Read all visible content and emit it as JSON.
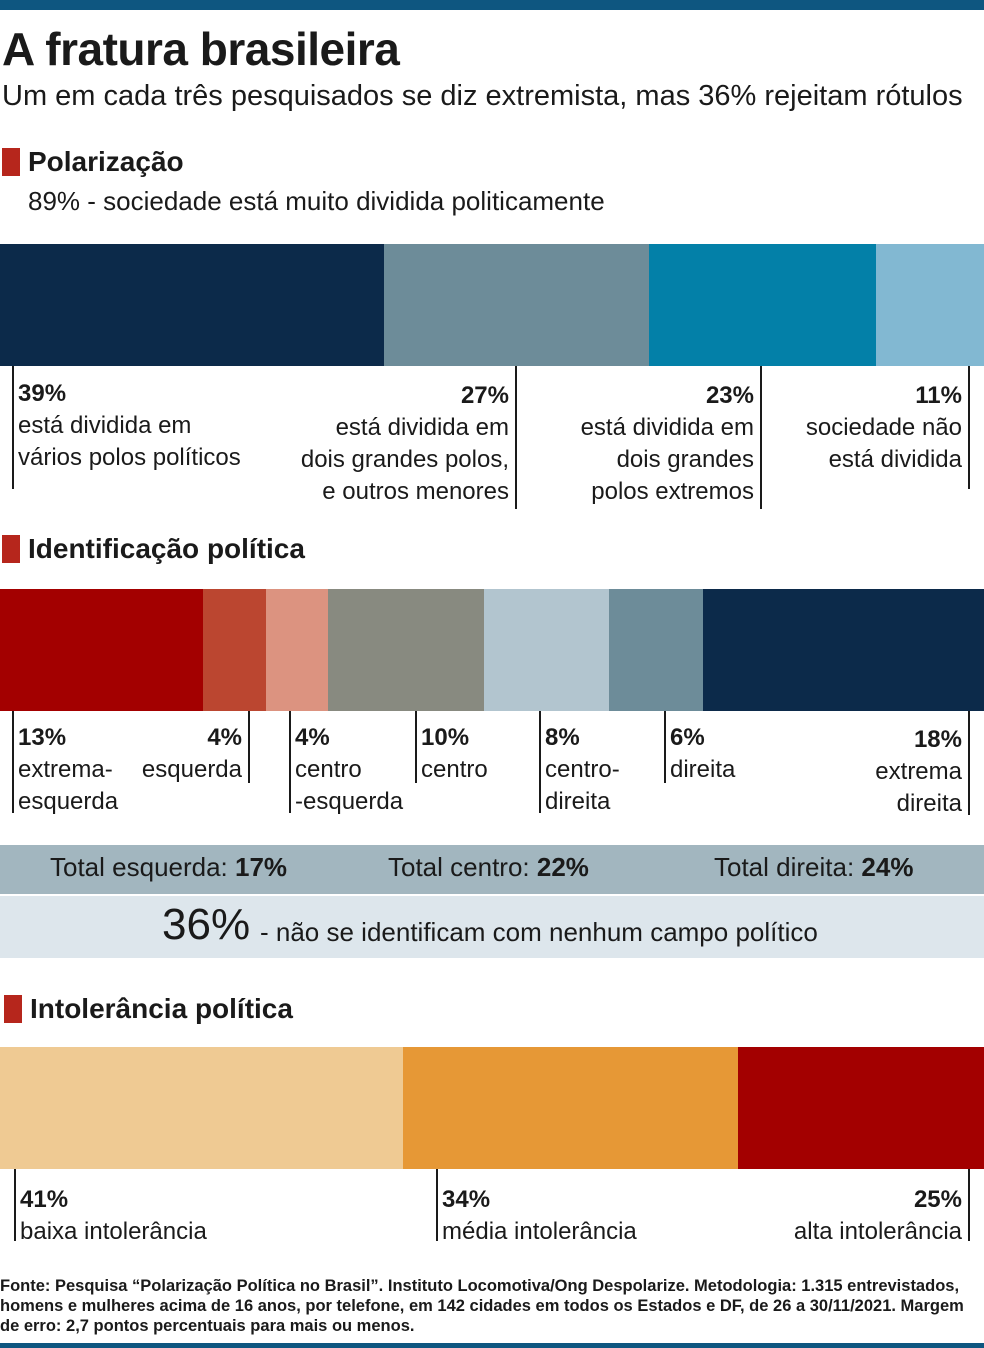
{
  "title": "A fratura brasileira",
  "subtitle": "Um em cada três pesquisados se diz extremista, mas 36% rejeitam rótulos",
  "colors": {
    "section_marker": "#b6261c",
    "rule": "#0e5680"
  },
  "chart_data": [
    {
      "type": "bar",
      "stacked": true,
      "orientation": "horizontal",
      "section_title": "Polarização",
      "highlight": "89% - sociedade está muito dividida politicamente",
      "series": [
        {
          "value": 39,
          "label_pct": "39%",
          "label_lines": [
            "está dividida em",
            "vários polos políticos"
          ],
          "color": "#0c2a4a"
        },
        {
          "value": 27,
          "label_pct": "27%",
          "label_lines": [
            "está dividida em",
            "dois grandes polos,",
            "e outros menores"
          ],
          "color": "#6d8c99"
        },
        {
          "value": 23,
          "label_pct": "23%",
          "label_lines": [
            "está dividida em",
            "dois grandes",
            "polos extremos"
          ],
          "color": "#0380a8"
        },
        {
          "value": 11,
          "label_pct": "11%",
          "label_lines": [
            "sociedade não",
            "está dividida"
          ],
          "color": "#82b8d2"
        }
      ]
    },
    {
      "type": "bar",
      "stacked": true,
      "orientation": "horizontal",
      "section_title": "Identificação política",
      "series": [
        {
          "value": 13,
          "label_pct": "13%",
          "label_lines": [
            "extrema-",
            "esquerda"
          ],
          "color": "#a30000"
        },
        {
          "value": 4,
          "label_pct": "4%",
          "label_lines": [
            "esquerda"
          ],
          "color": "#bb4630"
        },
        {
          "value": 4,
          "label_pct": "4%",
          "label_lines": [
            "centro",
            "-esquerda"
          ],
          "color": "#dc9380"
        },
        {
          "value": 10,
          "label_pct": "10%",
          "label_lines": [
            "centro"
          ],
          "color": "#888a80"
        },
        {
          "value": 8,
          "label_pct": "8%",
          "label_lines": [
            "centro-",
            "direita"
          ],
          "color": "#b2c5cf"
        },
        {
          "value": 6,
          "label_pct": "6%",
          "label_lines": [
            "direita"
          ],
          "color": "#6d8c99"
        },
        {
          "value": 18,
          "label_pct": "18%",
          "label_lines": [
            "extrema",
            "direita"
          ],
          "color": "#0c2a4a"
        }
      ],
      "totals": [
        {
          "label": "Total esquerda: ",
          "value": "17%"
        },
        {
          "label": "Total centro: ",
          "value": "22%"
        },
        {
          "label": "Total direita: ",
          "value": "24%"
        }
      ],
      "none": {
        "value": "36%",
        "text": "- não se identificam com nenhum campo político"
      }
    },
    {
      "type": "bar",
      "stacked": true,
      "orientation": "horizontal",
      "section_title": "Intolerância política",
      "series": [
        {
          "value": 41,
          "label_pct": "41%",
          "label_lines": [
            "baixa intolerância"
          ],
          "color": "#efca93"
        },
        {
          "value": 34,
          "label_pct": "34%",
          "label_lines": [
            "média intolerância"
          ],
          "color": "#e69836"
        },
        {
          "value": 25,
          "label_pct": "25%",
          "label_lines": [
            "alta intolerância"
          ],
          "color": "#a30000"
        }
      ]
    }
  ],
  "source": "Fonte: Pesquisa “Polarização Política no Brasil”. Instituto Locomotiva/Ong Despolarize. Metodologia: 1.315 entrevistados, homens e mulheres acima de 16 anos, por telefone, em 142 cidades em todos os Estados e DF, de 26 a 30/11/2021. Margem de erro: 2,7 pontos percentuais para mais ou menos."
}
